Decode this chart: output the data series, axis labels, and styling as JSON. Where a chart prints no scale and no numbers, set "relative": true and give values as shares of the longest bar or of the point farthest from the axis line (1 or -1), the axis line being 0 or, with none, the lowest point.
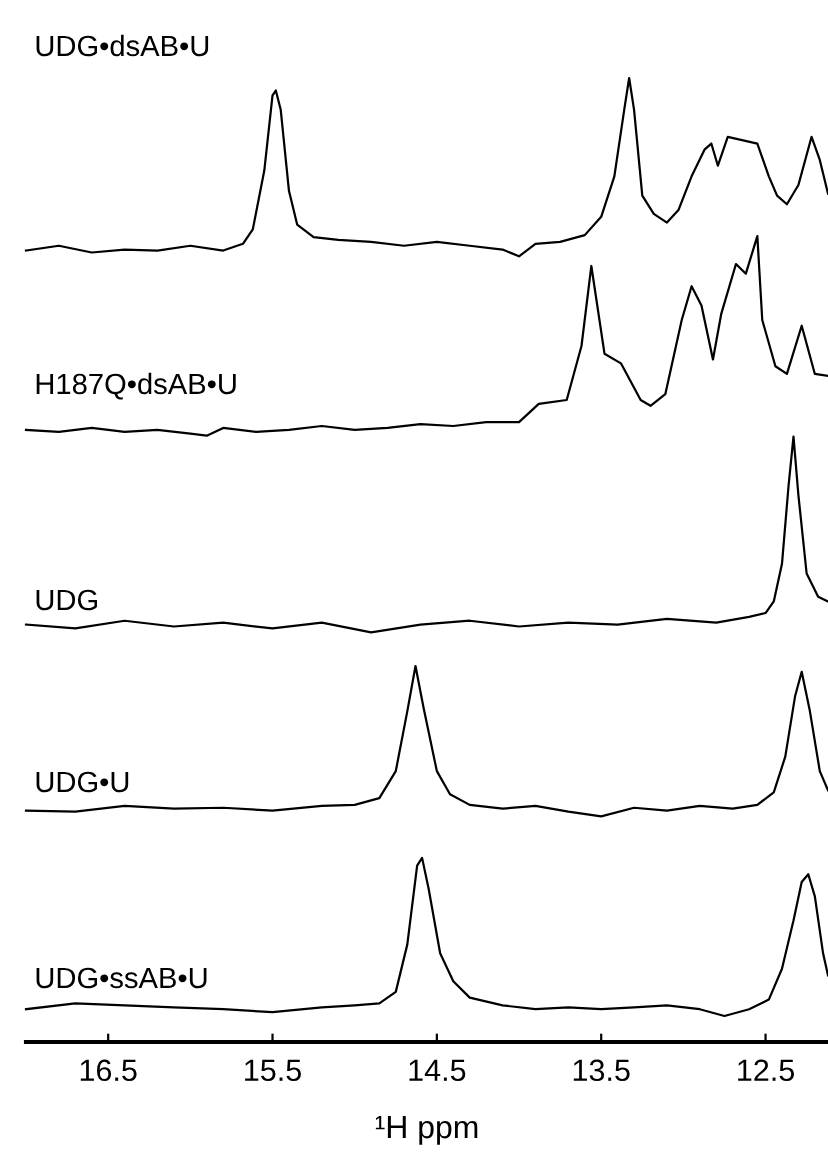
{
  "chart_data": {
    "type": "line",
    "relative": true,
    "xlim": [
      17.0,
      12.12
    ],
    "xticks": [
      16.5,
      15.5,
      14.5,
      13.5,
      12.5
    ],
    "tick_labels": "x",
    "xlabel": "¹H ppm",
    "series": [
      {
        "name": "UDG•dsAB•U",
        "color": "#000000",
        "x": [
          17.0,
          16.8,
          16.6,
          16.4,
          16.2,
          16.0,
          15.8,
          15.68,
          15.62,
          15.55,
          15.5,
          15.48,
          15.45,
          15.4,
          15.35,
          15.25,
          15.1,
          14.9,
          14.7,
          14.5,
          14.3,
          14.1,
          14.0,
          13.9,
          13.75,
          13.6,
          13.5,
          13.42,
          13.36,
          13.33,
          13.3,
          13.25,
          13.18,
          13.1,
          13.03,
          12.95,
          12.87,
          12.83,
          12.79,
          12.73,
          12.55,
          12.48,
          12.43,
          12.37,
          12.3,
          12.22,
          12.17,
          12.12
        ],
        "values": [
          0.821,
          0.826,
          0.819,
          0.822,
          0.821,
          0.826,
          0.821,
          0.828,
          0.843,
          0.904,
          0.982,
          0.987,
          0.967,
          0.883,
          0.848,
          0.835,
          0.832,
          0.83,
          0.826,
          0.83,
          0.826,
          0.822,
          0.815,
          0.828,
          0.83,
          0.837,
          0.856,
          0.898,
          0.967,
          1.0,
          0.967,
          0.878,
          0.859,
          0.85,
          0.863,
          0.898,
          0.926,
          0.932,
          0.909,
          0.939,
          0.932,
          0.898,
          0.878,
          0.869,
          0.889,
          0.939,
          0.915,
          0.88
        ]
      },
      {
        "name": "H187Q•dsAB•U",
        "color": "#000000",
        "x": [
          17.0,
          16.8,
          16.6,
          16.4,
          16.2,
          16.0,
          15.9,
          15.8,
          15.6,
          15.4,
          15.2,
          15.0,
          14.8,
          14.6,
          14.4,
          14.2,
          14.0,
          13.88,
          13.71,
          13.62,
          13.56,
          13.48,
          13.38,
          13.26,
          13.2,
          13.11,
          13.01,
          12.95,
          12.89,
          12.82,
          12.77,
          12.68,
          12.62,
          12.55,
          12.52,
          12.44,
          12.37,
          12.28,
          12.2,
          12.12
        ],
        "values": [
          0.635,
          0.633,
          0.637,
          0.633,
          0.635,
          0.631,
          0.629,
          0.637,
          0.633,
          0.635,
          0.639,
          0.635,
          0.637,
          0.641,
          0.639,
          0.643,
          0.643,
          0.662,
          0.666,
          0.722,
          0.805,
          0.714,
          0.704,
          0.666,
          0.66,
          0.672,
          0.749,
          0.784,
          0.764,
          0.708,
          0.755,
          0.807,
          0.797,
          0.836,
          0.749,
          0.701,
          0.693,
          0.743,
          0.693,
          0.691
        ]
      },
      {
        "name": "UDG",
        "color": "#000000",
        "x": [
          17.0,
          16.7,
          16.4,
          16.1,
          15.8,
          15.5,
          15.2,
          14.9,
          14.6,
          14.3,
          14.0,
          13.7,
          13.4,
          13.1,
          12.8,
          12.6,
          12.5,
          12.45,
          12.4,
          12.36,
          12.33,
          12.3,
          12.25,
          12.18,
          12.12
        ],
        "values": [
          0.433,
          0.429,
          0.437,
          0.431,
          0.435,
          0.429,
          0.435,
          0.425,
          0.433,
          0.437,
          0.431,
          0.435,
          0.433,
          0.439,
          0.435,
          0.441,
          0.445,
          0.457,
          0.496,
          0.577,
          0.628,
          0.567,
          0.486,
          0.462,
          0.457
        ]
      },
      {
        "name": "UDG•U",
        "color": "#000000",
        "x": [
          17.0,
          16.7,
          16.4,
          16.1,
          15.8,
          15.5,
          15.2,
          15.0,
          14.85,
          14.75,
          14.68,
          14.63,
          14.58,
          14.5,
          14.42,
          14.3,
          14.1,
          13.9,
          13.7,
          13.5,
          13.3,
          13.1,
          12.9,
          12.7,
          12.55,
          12.45,
          12.38,
          12.32,
          12.28,
          12.23,
          12.17,
          12.12
        ],
        "values": [
          0.24,
          0.239,
          0.245,
          0.242,
          0.243,
          0.24,
          0.245,
          0.246,
          0.253,
          0.281,
          0.343,
          0.39,
          0.346,
          0.281,
          0.257,
          0.246,
          0.242,
          0.245,
          0.239,
          0.234,
          0.243,
          0.24,
          0.245,
          0.242,
          0.246,
          0.259,
          0.296,
          0.359,
          0.384,
          0.343,
          0.281,
          0.261
        ]
      },
      {
        "name": "UDG•ssAB•U",
        "color": "#000000",
        "x": [
          17.0,
          16.7,
          16.4,
          16.1,
          15.8,
          15.5,
          15.2,
          15.0,
          14.85,
          14.75,
          14.68,
          14.62,
          14.59,
          14.55,
          14.48,
          14.4,
          14.3,
          14.1,
          13.9,
          13.7,
          13.5,
          13.3,
          13.1,
          12.9,
          12.75,
          12.6,
          12.48,
          12.4,
          12.33,
          12.28,
          12.24,
          12.2,
          12.15,
          12.12
        ],
        "values": [
          0.034,
          0.04,
          0.038,
          0.036,
          0.034,
          0.031,
          0.036,
          0.038,
          0.04,
          0.052,
          0.101,
          0.183,
          0.191,
          0.159,
          0.092,
          0.063,
          0.046,
          0.038,
          0.034,
          0.036,
          0.034,
          0.036,
          0.038,
          0.034,
          0.027,
          0.034,
          0.044,
          0.076,
          0.126,
          0.166,
          0.174,
          0.151,
          0.092,
          0.069
        ]
      }
    ]
  }
}
